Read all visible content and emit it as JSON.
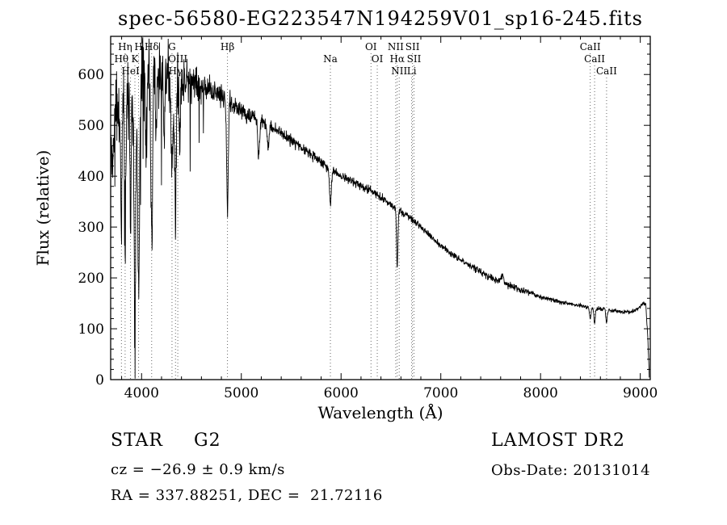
{
  "title": "spec-56580-EG223547N194259V01_sp16-245.fits",
  "footer": {
    "class_label": "STAR",
    "subclass": "G2",
    "survey": "LAMOST DR2",
    "cz": "cz = −26.9 ± 0.9 km/s",
    "obs_date": "Obs-Date: 20131014",
    "coords": "RA = 337.88251, DEC =  21.72116"
  },
  "chart_data": {
    "type": "line",
    "title": "spec-56580-EG223547N194259V01_sp16-245.fits",
    "xlabel": "Wavelength (Å)",
    "ylabel": "Flux (relative)",
    "xlim": [
      3690,
      9100
    ],
    "ylim": [
      0,
      675
    ],
    "xticks": [
      4000,
      5000,
      6000,
      7000,
      8000,
      9000
    ],
    "yticks": [
      0,
      100,
      200,
      300,
      400,
      500,
      600
    ],
    "x_minor_step": 200,
    "y_minor_step": 20,
    "grid": false,
    "legend": false,
    "line_color": "#000000",
    "marker_line_color": "#666666",
    "noise_seed": 42,
    "spectral_lines": [
      {
        "label": "Hθ",
        "wavelength": 3798,
        "row": 2
      },
      {
        "label": "Hη",
        "wavelength": 3835,
        "row": 1
      },
      {
        "label": "HeI",
        "wavelength": 3889,
        "row": 3
      },
      {
        "label": "K",
        "wavelength": 3933,
        "row": 2
      },
      {
        "label": "H",
        "wavelength": 3970,
        "row": 1
      },
      {
        "label": "Hδ",
        "wavelength": 4101,
        "row": 1
      },
      {
        "label": "G",
        "wavelength": 4305,
        "row": 1
      },
      {
        "label": "Hγ",
        "wavelength": 4340,
        "row": 3
      },
      {
        "label": "OIII",
        "wavelength": 4363,
        "row": 2
      },
      {
        "label": "Hβ",
        "wavelength": 4861,
        "row": 1
      },
      {
        "label": "Na",
        "wavelength": 5893,
        "row": 2
      },
      {
        "label": "OI",
        "wavelength": 6300,
        "row": 1
      },
      {
        "label": "OI",
        "wavelength": 6363,
        "row": 2
      },
      {
        "label": "NII",
        "wavelength": 6548,
        "row": 1
      },
      {
        "label": "Hα",
        "wavelength": 6563,
        "row": 2
      },
      {
        "label": "NII",
        "wavelength": 6583,
        "row": 3
      },
      {
        "label": "Li",
        "wavelength": 6708,
        "row": 3
      },
      {
        "label": "SII",
        "wavelength": 6716,
        "row": 1
      },
      {
        "label": "SII",
        "wavelength": 6731,
        "row": 2
      },
      {
        "label": "CaII",
        "wavelength": 8498,
        "row": 1
      },
      {
        "label": "CaII",
        "wavelength": 8542,
        "row": 2
      },
      {
        "label": "CaII",
        "wavelength": 8662,
        "row": 3
      }
    ],
    "continuum": [
      [
        3690,
        430
      ],
      [
        3720,
        485
      ],
      [
        3760,
        525
      ],
      [
        3800,
        548
      ],
      [
        3850,
        562
      ],
      [
        3900,
        572
      ],
      [
        3950,
        580
      ],
      [
        4000,
        588
      ],
      [
        4100,
        598
      ],
      [
        4200,
        601
      ],
      [
        4300,
        597
      ],
      [
        4400,
        591
      ],
      [
        4500,
        586
      ],
      [
        4600,
        579
      ],
      [
        4700,
        569
      ],
      [
        4800,
        557
      ],
      [
        4900,
        543
      ],
      [
        5000,
        528
      ],
      [
        5100,
        517
      ],
      [
        5200,
        507
      ],
      [
        5300,
        497
      ],
      [
        5400,
        485
      ],
      [
        5500,
        471
      ],
      [
        5600,
        456
      ],
      [
        5700,
        442
      ],
      [
        5800,
        428
      ],
      [
        5900,
        413
      ],
      [
        6000,
        400
      ],
      [
        6100,
        391
      ],
      [
        6200,
        381
      ],
      [
        6300,
        371
      ],
      [
        6400,
        357
      ],
      [
        6500,
        345
      ],
      [
        6600,
        331
      ],
      [
        6700,
        317
      ],
      [
        6800,
        300
      ],
      [
        6900,
        281
      ],
      [
        7000,
        263
      ],
      [
        7100,
        248
      ],
      [
        7200,
        236
      ],
      [
        7300,
        223
      ],
      [
        7400,
        211
      ],
      [
        7500,
        201
      ],
      [
        7600,
        192
      ],
      [
        7700,
        184
      ],
      [
        7800,
        177
      ],
      [
        7900,
        170
      ],
      [
        8000,
        163
      ],
      [
        8100,
        158
      ],
      [
        8200,
        153
      ],
      [
        8300,
        149
      ],
      [
        8400,
        145
      ],
      [
        8500,
        142
      ],
      [
        8600,
        139
      ],
      [
        8700,
        136
      ],
      [
        8800,
        134
      ],
      [
        8900,
        133
      ],
      [
        8980,
        140
      ],
      [
        9030,
        151
      ],
      [
        9055,
        148
      ],
      [
        9075,
        85
      ],
      [
        9090,
        6
      ]
    ],
    "absorption_features": [
      {
        "wavelength": 3798,
        "depth": 230,
        "width": 7
      },
      {
        "wavelength": 3835,
        "depth": 280,
        "width": 7
      },
      {
        "wavelength": 3889,
        "depth": 290,
        "width": 7
      },
      {
        "wavelength": 3933,
        "depth": 420,
        "width": 9
      },
      {
        "wavelength": 3970,
        "depth": 400,
        "width": 9
      },
      {
        "wavelength": 4045,
        "depth": 150,
        "width": 5
      },
      {
        "wavelength": 4101,
        "depth": 330,
        "width": 8
      },
      {
        "wavelength": 4144,
        "depth": 130,
        "width": 5
      },
      {
        "wavelength": 4227,
        "depth": 160,
        "width": 6
      },
      {
        "wavelength": 4305,
        "depth": 170,
        "width": 12
      },
      {
        "wavelength": 4340,
        "depth": 270,
        "width": 8
      },
      {
        "wavelength": 4383,
        "depth": 140,
        "width": 6
      },
      {
        "wavelength": 4861,
        "depth": 210,
        "width": 8
      },
      {
        "wavelength": 5173,
        "depth": 70,
        "width": 9
      },
      {
        "wavelength": 5270,
        "depth": 45,
        "width": 8
      },
      {
        "wavelength": 5893,
        "depth": 70,
        "width": 9
      },
      {
        "wavelength": 6563,
        "depth": 112,
        "width": 7
      },
      {
        "wavelength": 7620,
        "depth": -14,
        "width": 12
      },
      {
        "wavelength": 8498,
        "depth": 24,
        "width": 7
      },
      {
        "wavelength": 8542,
        "depth": 30,
        "width": 7
      },
      {
        "wavelength": 8662,
        "depth": 26,
        "width": 7
      }
    ],
    "noise_profile": [
      [
        3690,
        85
      ],
      [
        3900,
        85
      ],
      [
        4100,
        72
      ],
      [
        4300,
        55
      ],
      [
        4500,
        36
      ],
      [
        4700,
        25
      ],
      [
        5000,
        17
      ],
      [
        5300,
        13
      ],
      [
        5600,
        11
      ],
      [
        6000,
        9
      ],
      [
        6400,
        8
      ],
      [
        6800,
        7
      ],
      [
        7200,
        6
      ],
      [
        7600,
        8
      ],
      [
        8000,
        5
      ],
      [
        8400,
        4
      ],
      [
        8800,
        3.5
      ],
      [
        9090,
        4
      ]
    ],
    "blue_spikes": {
      "probability": 0.05,
      "max_wavelength": 4650,
      "depth_profile": [
        [
          3690,
          250
        ],
        [
          4200,
          290
        ],
        [
          4650,
          120
        ]
      ]
    }
  }
}
